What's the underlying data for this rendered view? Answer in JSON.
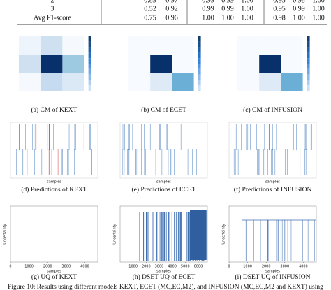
{
  "table": {
    "rows": [
      [
        "2",
        "0.89",
        "0.97",
        "0.99",
        "0.99",
        "1.00",
        "0.95",
        "0.98",
        "1.00"
      ],
      [
        "3",
        "0.52",
        "0.92",
        "0.99",
        "0.99",
        "1.00",
        "0.95",
        "0.99",
        "1.00"
      ],
      [
        "Avg F1-score",
        "0.75",
        "0.96",
        "1.00",
        "1.00",
        "1.00",
        "0.98",
        "1.00",
        "1.00"
      ]
    ]
  },
  "panels": [
    {
      "kind": "cm",
      "caption": "(a) CM of KEXT"
    },
    {
      "kind": "cm",
      "caption": "(b) CM of ECET"
    },
    {
      "kind": "cm",
      "caption": "(c) CM of INFUSION"
    },
    {
      "kind": "pred",
      "caption": "(d) Predictions of KEXT",
      "xlabel": "samples"
    },
    {
      "kind": "pred",
      "caption": "(e) Predictions of ECET",
      "xlabel": "samples"
    },
    {
      "kind": "pred",
      "caption": "(f) Predictions of INFUSION",
      "xlabel": "samples"
    },
    {
      "kind": "uq",
      "caption": "(g) UQ of KEXT",
      "xlabel": "samples",
      "ylabel": "Uncertainty",
      "xlim": [
        0,
        4700
      ],
      "xticks": [
        0,
        1000,
        2000,
        3000,
        4000
      ]
    },
    {
      "kind": "uq",
      "caption": "(h) DSET UQ of ECET",
      "xlabel": "samples",
      "ylabel": "Uncertainty",
      "xlim": [
        0,
        6700
      ],
      "xticks": [
        1000,
        2000,
        3000,
        4000,
        5000,
        6000
      ]
    },
    {
      "kind": "uq",
      "caption": "(i) DSET UQ of INFUSION",
      "xlabel": "samples",
      "ylabel": "Uncertainty",
      "xlim": [
        0,
        4700
      ],
      "xticks": [
        0,
        1000,
        2000,
        3000,
        4000
      ]
    }
  ],
  "figure_caption": "Figure 10: Results using different models KEXT, ECET (MC,EC,M2), and INFUSION (MC,EC,M2 and KEXT) using"
}
